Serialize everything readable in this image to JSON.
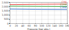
{
  "chart_data": {
    "type": "line",
    "x_label": "Pressure (bar abs.)",
    "x": [
      0,
      20,
      40,
      60,
      80,
      100,
      120,
      140,
      160,
      180
    ],
    "series": [
      {
        "name": "CH4",
        "color": "#e8302a",
        "values": [
          2250,
          2255,
          2262,
          2268,
          2275,
          2282,
          2288,
          2293,
          2298,
          2302
        ]
      },
      {
        "name": "C2H6",
        "color": "#2ca02c",
        "values": [
          2060,
          2055,
          2050,
          2045,
          2040,
          2035,
          2030,
          2025,
          2020,
          2015
        ]
      },
      {
        "name": "C3H8",
        "color": "#1f5fbf",
        "values": [
          1720,
          1712,
          1705,
          1698,
          1692,
          1686,
          1680,
          1675,
          1670,
          1665
        ]
      }
    ],
    "xlim": [
      0,
      180
    ],
    "xticks": [
      0,
      20,
      40,
      60,
      80,
      100,
      120,
      140,
      160,
      180
    ],
    "ylim": [
      0,
      2500
    ],
    "yticks": [
      0,
      500,
      {
        "value": 1000,
        "label": "1,000"
      },
      {
        "value": 1500,
        "label": "1,500"
      },
      {
        "value": 2000,
        "label": "2,000"
      },
      {
        "value": 2500,
        "label": "2,500"
      }
    ],
    "grid": true,
    "legend": "right"
  }
}
